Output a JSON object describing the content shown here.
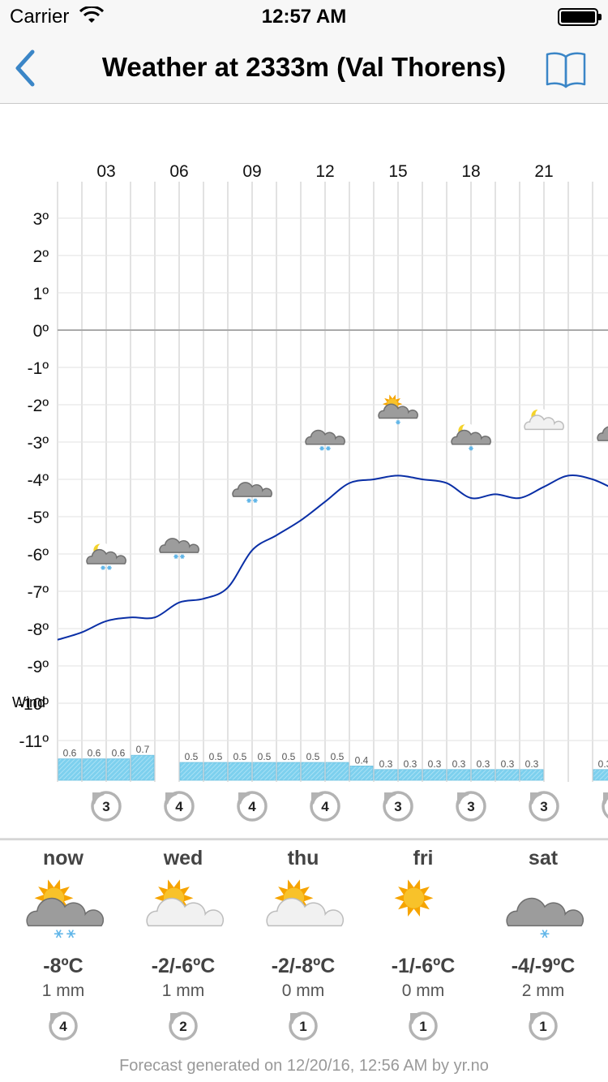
{
  "status_bar": {
    "carrier": "Carrier",
    "time": "12:57 AM"
  },
  "nav": {
    "title": "Weather at 2333m (Val Thorens)",
    "back_icon": "chevron-left-icon",
    "book_icon": "book-icon"
  },
  "colors": {
    "accent": "#3b86c7",
    "temp_line": "#0a2fa6",
    "precip_bar": "#7dd0ee",
    "grid": "#d9d9d9"
  },
  "chart_data": {
    "type": "line",
    "hour_labels": [
      "03",
      "06",
      "09",
      "12",
      "15",
      "18",
      "21"
    ],
    "ylim": [
      -11.5,
      3.5
    ],
    "y_ticks": [
      "3º",
      "2º",
      "1º",
      "0º",
      "-1º",
      "-2º",
      "-3º",
      "-4º",
      "-5º",
      "-6º",
      "-7º",
      "-8º",
      "-9º",
      "-10º",
      "-11º"
    ],
    "temperature": [
      -8.3,
      -8.1,
      -7.8,
      -7.7,
      -7.7,
      -7.3,
      -7.2,
      -6.9,
      -5.9,
      -5.5,
      -5.1,
      -4.6,
      -4.1,
      -4.0,
      -3.9,
      -4.0,
      -4.1,
      -4.5,
      -4.4,
      -4.5,
      -4.2,
      -3.9,
      -4.0,
      -4.3
    ],
    "precipitation": [
      0.6,
      0.6,
      0.6,
      0.7,
      null,
      0.5,
      0.5,
      0.5,
      0.5,
      0.5,
      0.5,
      0.5,
      0.4,
      0.3,
      0.3,
      0.3,
      0.3,
      0.3,
      0.3,
      0.3,
      null,
      null,
      0.3
    ],
    "symbols": [
      {
        "icon": "moon-cloud-snow-icon",
        "temp": -6.2,
        "flakes": 2
      },
      {
        "icon": "cloud-snow-icon",
        "temp": -5.9,
        "flakes": 2
      },
      {
        "icon": "cloud-snow-icon",
        "temp": -4.4,
        "flakes": 2
      },
      {
        "icon": "cloud-snow-icon",
        "temp": -3.0,
        "flakes": 2
      },
      {
        "icon": "sun-cloud-snow-icon",
        "temp": -2.3,
        "flakes": 1
      },
      {
        "icon": "moon-cloud-snow-icon",
        "temp": -3.0,
        "flakes": 1
      },
      {
        "icon": "moon-cloud-icon",
        "temp": -2.6,
        "flakes": 0
      },
      {
        "icon": "cloud-icon",
        "temp": -2.9,
        "flakes": 0
      }
    ],
    "wind_label": "Wind",
    "wind": [
      "3",
      "4",
      "4",
      "4",
      "3",
      "3",
      "3",
      ""
    ]
  },
  "forecast": [
    {
      "day": "now",
      "icon": "sun-cloud-snow-icon",
      "temp": "-8ºC",
      "precip": "1 mm",
      "wind": "4"
    },
    {
      "day": "wed",
      "icon": "sun-cloud-icon",
      "temp": "-2/-6ºC",
      "precip": "1 mm",
      "wind": "2"
    },
    {
      "day": "thu",
      "icon": "sun-small-cloud-icon",
      "temp": "-2/-8ºC",
      "precip": "0 mm",
      "wind": "1"
    },
    {
      "day": "fri",
      "icon": "sun-icon",
      "temp": "-1/-6ºC",
      "precip": "0 mm",
      "wind": "1"
    },
    {
      "day": "sat",
      "icon": "cloud-snow-icon",
      "temp": "-4/-9ºC",
      "precip": "2 mm",
      "wind": "1"
    }
  ],
  "footer": "Forecast generated on 12/20/16, 12:56 AM by yr.no"
}
